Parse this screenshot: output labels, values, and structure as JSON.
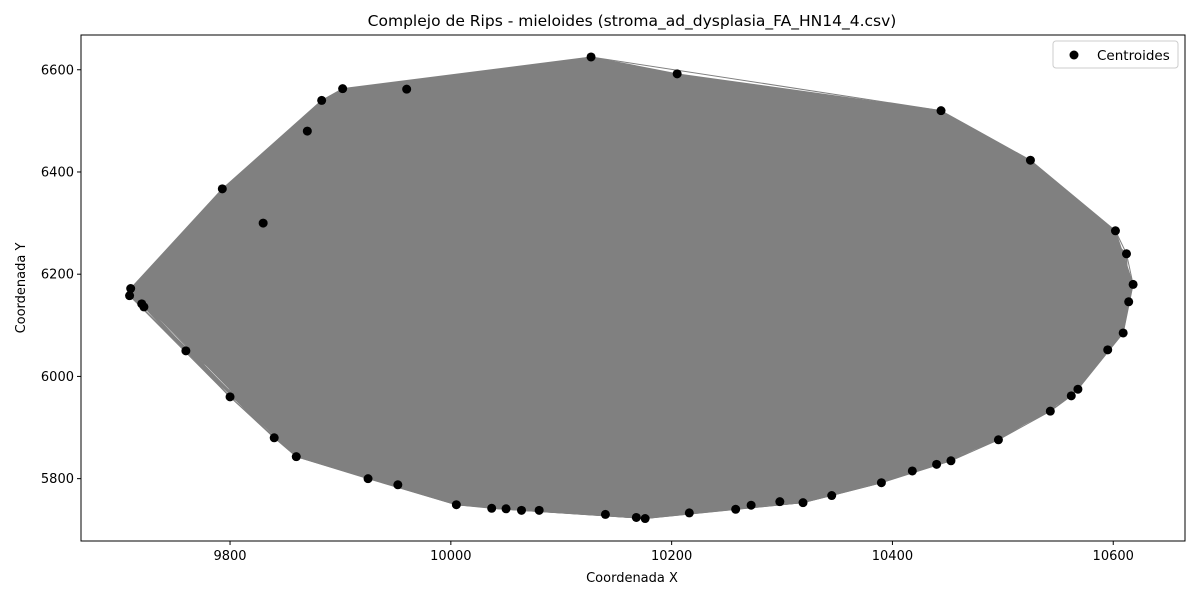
{
  "chart_data": {
    "type": "scatter",
    "title": "Complejo de Rips - mieloides (stroma_ad_dysplasia_FA_HN14_4.csv)",
    "xlabel": "Coordenada X",
    "ylabel": "Coordenada Y",
    "xlim": [
      9665,
      10665
    ],
    "ylim": [
      5678,
      6668
    ],
    "xticks": [
      9800,
      10000,
      10200,
      10400,
      10600
    ],
    "yticks": [
      5800,
      6000,
      6200,
      6400,
      6600
    ],
    "grid": false,
    "legend": {
      "position": "top-right",
      "entries": [
        "Centroides"
      ]
    },
    "colors": {
      "points": "#000000",
      "edges": "#808080",
      "frame": "#000000",
      "legend_border": "#cccccc"
    },
    "series": [
      {
        "name": "Centroides",
        "points": [
          [
            9710,
            6172
          ],
          [
            9709,
            6158
          ],
          [
            9722,
            6136
          ],
          [
            9720,
            6142
          ],
          [
            9793,
            6367
          ],
          [
            9883,
            6540
          ],
          [
            9902,
            6563
          ],
          [
            9960,
            6562
          ],
          [
            10127,
            6625
          ],
          [
            10205,
            6592
          ],
          [
            10444,
            6520
          ],
          [
            10525,
            6423
          ],
          [
            10602,
            6285
          ],
          [
            10612,
            6240
          ],
          [
            10618,
            6180
          ],
          [
            10614,
            6146
          ],
          [
            10609,
            6085
          ],
          [
            10595,
            6052
          ],
          [
            10568,
            5975
          ],
          [
            10562,
            5962
          ],
          [
            10543,
            5932
          ],
          [
            10496,
            5876
          ],
          [
            10453,
            5835
          ],
          [
            10440,
            5828
          ],
          [
            10418,
            5815
          ],
          [
            10390,
            5792
          ],
          [
            10345,
            5767
          ],
          [
            10319,
            5753
          ],
          [
            10298,
            5755
          ],
          [
            10272,
            5748
          ],
          [
            10258,
            5740
          ],
          [
            10216,
            5733
          ],
          [
            10176,
            5722
          ],
          [
            10168,
            5724
          ],
          [
            10140,
            5730
          ],
          [
            10080,
            5738
          ],
          [
            10064,
            5738
          ],
          [
            10050,
            5741
          ],
          [
            10037,
            5742
          ],
          [
            10005,
            5749
          ],
          [
            9952,
            5788
          ],
          [
            9925,
            5800
          ],
          [
            9860,
            5843
          ],
          [
            9840,
            5880
          ],
          [
            9800,
            5960
          ],
          [
            9760,
            6050
          ],
          [
            9830,
            6300
          ],
          [
            9870,
            6480
          ]
        ]
      }
    ]
  }
}
